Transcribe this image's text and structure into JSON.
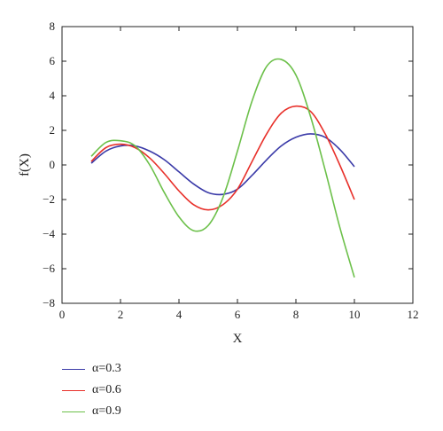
{
  "chart_data": {
    "type": "line",
    "xlabel": "X",
    "ylabel": "f(X)",
    "xlim": [
      0,
      12
    ],
    "ylim": [
      -8,
      8
    ],
    "xticks": [
      0,
      2,
      4,
      6,
      8,
      10,
      12
    ],
    "yticks": [
      -8,
      -6,
      -4,
      -2,
      0,
      2,
      4,
      6,
      8
    ],
    "grid": false,
    "legend_position": "bottom-left, outside plot",
    "x": [
      1,
      1.5,
      2,
      2.5,
      3,
      3.5,
      4,
      4.5,
      5,
      5.5,
      6,
      6.5,
      7,
      7.5,
      8,
      8.5,
      9,
      9.5,
      10
    ],
    "series": [
      {
        "name": "α=0.3",
        "color": "#3a3aa8",
        "values": [
          0.1,
          0.8,
          1.1,
          1.1,
          0.8,
          0.3,
          -0.4,
          -1.1,
          -1.6,
          -1.7,
          -1.4,
          -0.6,
          0.3,
          1.1,
          1.6,
          1.8,
          1.6,
          0.9,
          -0.1
        ]
      },
      {
        "name": "α=0.6",
        "color": "#e8302a",
        "values": [
          0.2,
          1.0,
          1.2,
          1.0,
          0.4,
          -0.5,
          -1.5,
          -2.3,
          -2.6,
          -2.3,
          -1.4,
          0.2,
          1.8,
          3.0,
          3.4,
          3.1,
          1.8,
          0.0,
          -2.0
        ]
      },
      {
        "name": "α=0.9",
        "color": "#6cc04a",
        "values": [
          0.5,
          1.3,
          1.4,
          1.1,
          0.0,
          -1.6,
          -3.0,
          -3.8,
          -3.5,
          -1.9,
          0.8,
          3.7,
          5.7,
          6.1,
          5.2,
          2.8,
          -0.3,
          -3.6,
          -6.5
        ]
      }
    ]
  }
}
